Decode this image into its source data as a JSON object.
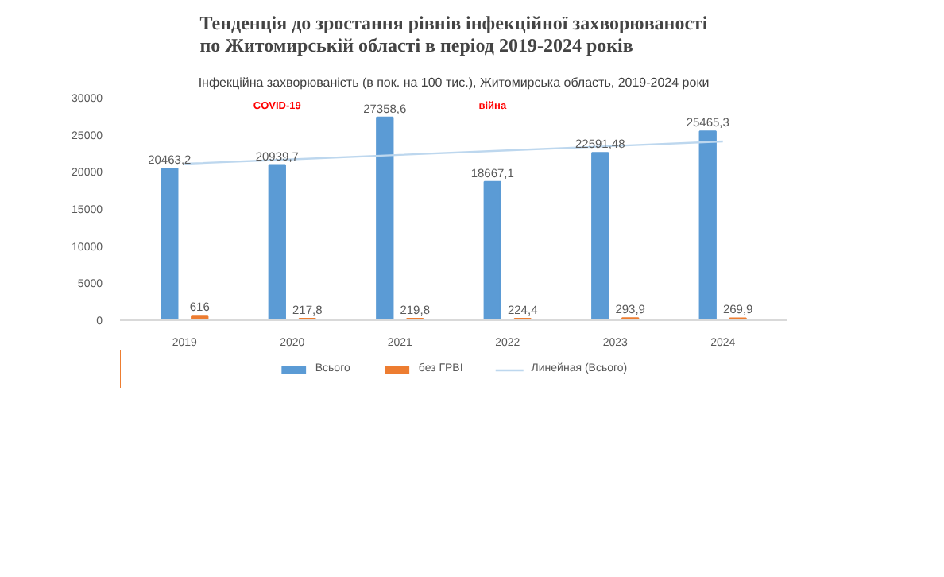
{
  "chart_data": {
    "type": "bar",
    "title": "Тенденція до зростання рівнів інфекційної захворюваності\nпо Житомирській області в період 2019-2024 років",
    "subtitle": "Інфекційна захворюваність (в пок. на 100 тис.), Житомирська область, 2019-2024 роки",
    "categories": [
      "2019",
      "2020",
      "2021",
      "2022",
      "2023",
      "2024"
    ],
    "series": [
      {
        "name": "Всього",
        "color": "#5b9bd5",
        "values": [
          20463.2,
          20939.7,
          27358.6,
          18667.1,
          22591.48,
          25465.3
        ],
        "value_labels": [
          "20463,2",
          "20939,7",
          "27358,6",
          "18667,1",
          "22591,48",
          "25465,3"
        ]
      },
      {
        "name": "без ГРВІ",
        "color": "#ed7d31",
        "values": [
          616,
          217.8,
          219.8,
          224.4,
          293.9,
          269.9
        ],
        "value_labels": [
          "616",
          "217,8",
          "219,8",
          "224,4",
          "293,9",
          "269,9"
        ]
      },
      {
        "name": "Линейная (Всього)",
        "type": "line",
        "color": "#bdd7ee",
        "values": [
          21100,
          21700,
          22300,
          22900,
          23500,
          24100
        ]
      }
    ],
    "annotations": [
      "COVID-19",
      "війна"
    ],
    "ylim": [
      0,
      30000
    ],
    "yticks": [
      0,
      5000,
      10000,
      15000,
      20000,
      25000,
      30000
    ],
    "grid": false,
    "legend": "bottom"
  }
}
